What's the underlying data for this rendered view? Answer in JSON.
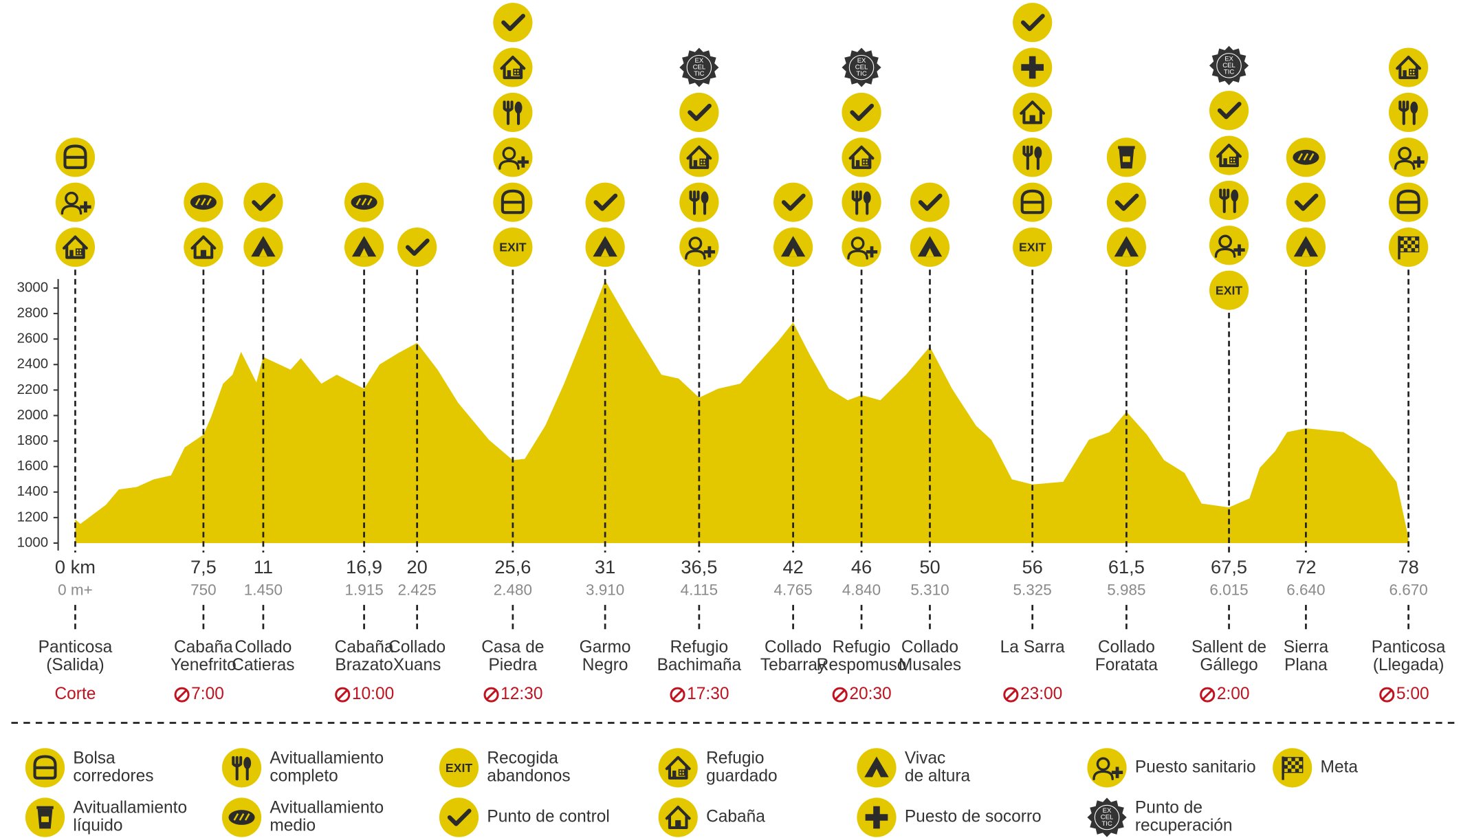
{
  "chart_data": {
    "type": "area",
    "color": "#e3c800",
    "xlim": [
      -1,
      78
    ],
    "ylim": [
      1000,
      3100
    ],
    "yticks": [
      1000,
      1200,
      1400,
      1600,
      1800,
      2000,
      2200,
      2400,
      2600,
      2800,
      3000
    ],
    "x": [
      0,
      0.3,
      1.0,
      1.8,
      2.55,
      3.6,
      4.6,
      5.6,
      6.4,
      7.5,
      7.95,
      8.65,
      9.2,
      9.7,
      10.6,
      11,
      12.6,
      13.2,
      14.4,
      15.3,
      16.9,
      17.8,
      18.9,
      20,
      21.2,
      22.4,
      24.2,
      25.6,
      26.3,
      27.5,
      28.6,
      29.8,
      31,
      32.6,
      34.3,
      35.3,
      36.5,
      37.6,
      38.9,
      40.1,
      41.1,
      42,
      43,
      44.1,
      45.2,
      46,
      47.1,
      48.6,
      50,
      51.3,
      52.7,
      53.6,
      54.8,
      56,
      57.8,
      59.3,
      60.5,
      61.5,
      62.7,
      63.7,
      64.9,
      65.9,
      67.5,
      68.7,
      69.3,
      70.2,
      70.9,
      72,
      74.2,
      75.8,
      77.3,
      78
    ],
    "values": [
      1185,
      1150,
      1220,
      1300,
      1420,
      1440,
      1500,
      1530,
      1750,
      1850,
      1990,
      2250,
      2320,
      2500,
      2260,
      2460,
      2360,
      2450,
      2250,
      2320,
      2210,
      2400,
      2490,
      2570,
      2360,
      2100,
      1810,
      1650,
      1660,
      1920,
      2250,
      2650,
      3060,
      2690,
      2320,
      2290,
      2140,
      2210,
      2250,
      2430,
      2580,
      2730,
      2470,
      2210,
      2120,
      2160,
      2120,
      2320,
      2540,
      2210,
      1920,
      1810,
      1500,
      1460,
      1480,
      1810,
      1870,
      2030,
      1850,
      1650,
      1550,
      1310,
      1280,
      1350,
      1590,
      1720,
      1870,
      1900,
      1870,
      1740,
      1480,
      1040
    ],
    "cutoff_header": "Corte",
    "exit_label": "EXIT",
    "excel_label": [
      "EX",
      "CEL",
      "TIC"
    ],
    "checkpoints": [
      {
        "km": {
          "value": 0,
          "label": "0 km"
        },
        "ascent": {
          "value": 0,
          "label": "0 m+"
        },
        "name": [
          "Panticosa",
          "(Salida)"
        ],
        "icons": [
          "bag",
          "medic",
          "refuge"
        ]
      },
      {
        "km": {
          "value": 7.5,
          "label": "7,5"
        },
        "ascent": 750,
        "name": [
          "Cabaña",
          "Yenefrito"
        ],
        "cutoff": "7:00",
        "icons": [
          "bread",
          "cabin"
        ]
      },
      {
        "km": 11,
        "ascent": {
          "value": 1450,
          "label": "1.450"
        },
        "name": [
          "Collado",
          "Catieras"
        ],
        "icons": [
          "check",
          "tent"
        ]
      },
      {
        "km": {
          "value": 16.9,
          "label": "16,9"
        },
        "ascent": {
          "value": 1915,
          "label": "1.915"
        },
        "name": [
          "Cabaña",
          "Brazato"
        ],
        "cutoff": "10:00",
        "icons": [
          "bread",
          "tent"
        ]
      },
      {
        "km": 20,
        "ascent": {
          "value": 2425,
          "label": "2.425"
        },
        "name": [
          "Collado",
          "Xuans"
        ],
        "icons": [
          "check"
        ]
      },
      {
        "km": {
          "value": 25.6,
          "label": "25,6"
        },
        "ascent": {
          "value": 2480,
          "label": "2.480"
        },
        "name": [
          "Casa de",
          "Piedra"
        ],
        "cutoff": "12:30",
        "icons": [
          "check",
          "refuge",
          "cutlery",
          "medic",
          "bag",
          "exit"
        ]
      },
      {
        "km": 31,
        "ascent": {
          "value": 3910,
          "label": "3.910"
        },
        "name": [
          "Garmo",
          "Negro"
        ],
        "icons": [
          "check",
          "tent"
        ]
      },
      {
        "km": {
          "value": 36.5,
          "label": "36,5"
        },
        "ascent": {
          "value": 4115,
          "label": "4.115"
        },
        "name": [
          "Refugio",
          "Bachimaña"
        ],
        "cutoff": "17:30",
        "icons": [
          "excel",
          "check",
          "refuge",
          "cutlery",
          "medic"
        ]
      },
      {
        "km": 42,
        "ascent": {
          "value": 4765,
          "label": "4.765"
        },
        "name": [
          "Collado",
          "Tebarray"
        ],
        "icons": [
          "check",
          "tent"
        ]
      },
      {
        "km": 46,
        "ascent": {
          "value": 4840,
          "label": "4.840"
        },
        "name": [
          "Refugio",
          "Respomuso"
        ],
        "cutoff": "20:30",
        "icons": [
          "excel",
          "check",
          "refuge",
          "cutlery",
          "medic"
        ]
      },
      {
        "km": 50,
        "ascent": {
          "value": 5310,
          "label": "5.310"
        },
        "name": [
          "Collado",
          "Musales"
        ],
        "icons": [
          "check",
          "tent"
        ]
      },
      {
        "km": 56,
        "ascent": {
          "value": 5325,
          "label": "5.325"
        },
        "name": [
          "La Sarra"
        ],
        "cutoff": "23:00",
        "icons": [
          "check",
          "cross",
          "cabin",
          "cutlery",
          "bag",
          "exit"
        ]
      },
      {
        "km": {
          "value": 61.5,
          "label": "61,5"
        },
        "ascent": {
          "value": 5985,
          "label": "5.985"
        },
        "name": [
          "Collado",
          "Foratata"
        ],
        "icons": [
          "drink",
          "check",
          "tent"
        ]
      },
      {
        "km": {
          "value": 67.5,
          "label": "67,5"
        },
        "ascent": {
          "value": 6015,
          "label": "6.015"
        },
        "name": [
          "Sallent de",
          "Gállego"
        ],
        "cutoff": "2:00",
        "icons": [
          "excel",
          "check",
          "refuge",
          "cutlery",
          "medic",
          "exit"
        ]
      },
      {
        "km": 72,
        "ascent": {
          "value": 6640,
          "label": "6.640"
        },
        "name": [
          "Sierra",
          "Plana"
        ],
        "icons": [
          "bread",
          "check",
          "tent"
        ]
      },
      {
        "km": 78,
        "ascent": {
          "value": 6670,
          "label": "6.670"
        },
        "name": [
          "Panticosa",
          "(Llegada)"
        ],
        "cutoff": "5:00",
        "icons": [
          "refuge",
          "cutlery",
          "medic",
          "bag",
          "flag"
        ]
      }
    ],
    "legend": [
      {
        "icon": "bag",
        "label": [
          "Bolsa",
          "corredores"
        ]
      },
      {
        "icon": "drink",
        "label": [
          "Avituallamiento",
          "líquido"
        ]
      },
      {
        "icon": "cutlery",
        "label": [
          "Avituallamiento",
          "completo"
        ]
      },
      {
        "icon": "bread",
        "label": [
          "Avituallamiento",
          "medio"
        ]
      },
      {
        "icon": "exit",
        "label": [
          "Recogida",
          "abandonos"
        ]
      },
      {
        "icon": "check",
        "label": [
          "Punto de control"
        ]
      },
      {
        "icon": "refuge",
        "label": [
          "Refugio",
          "guardado"
        ]
      },
      {
        "icon": "cabin",
        "label": [
          "Cabaña"
        ]
      },
      {
        "icon": "tent",
        "label": [
          "Vivac",
          "de altura"
        ]
      },
      {
        "icon": "cross",
        "label": [
          "Puesto de socorro"
        ]
      },
      {
        "icon": "medic",
        "label": [
          "Puesto sanitario"
        ]
      },
      {
        "icon": "excel",
        "label": [
          "Punto de",
          "recuperación"
        ]
      },
      {
        "icon": "flag",
        "label": [
          "Meta"
        ]
      }
    ]
  }
}
